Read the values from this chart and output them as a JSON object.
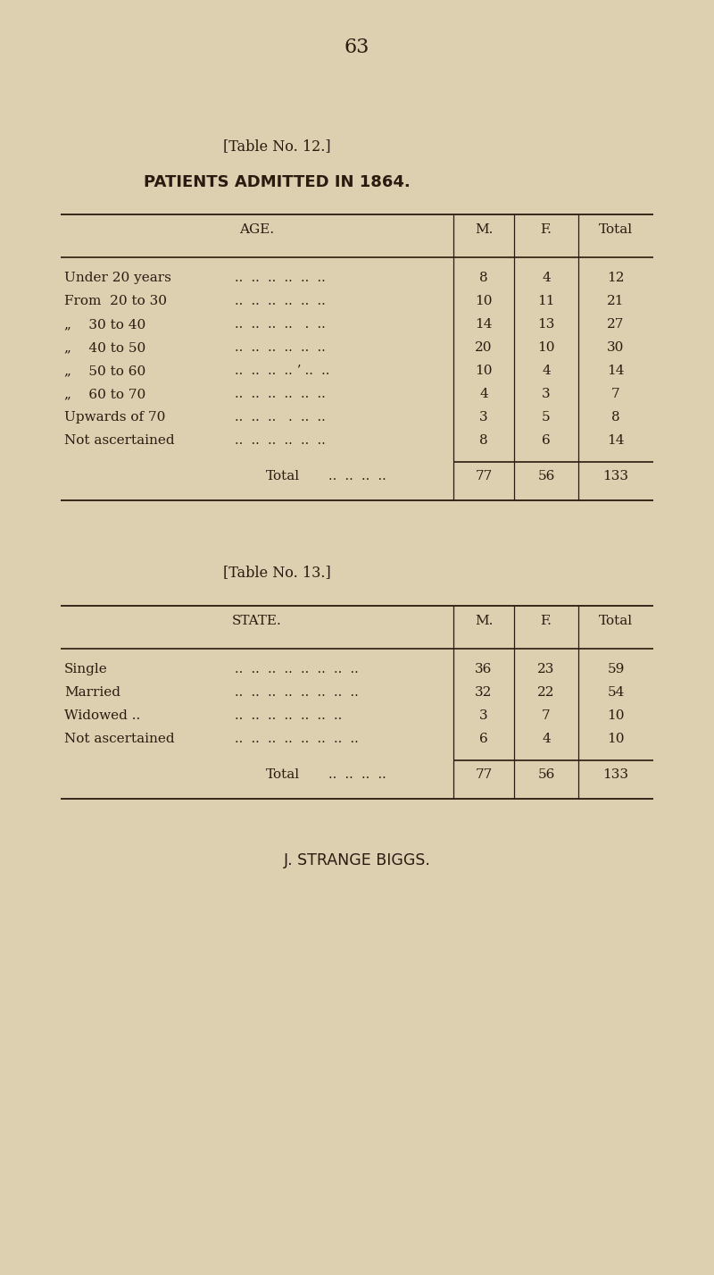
{
  "bg_color": "#ddd0b0",
  "text_color": "#2a1a10",
  "page_number": "63",
  "table1_label": "[Table No. 12.]",
  "table1_title": "PATIENTS ADMITTED IN 1864.",
  "table2_label": "[Table No. 13.]",
  "footer": "J. STRANGE BIGGS.",
  "t1_rows": [
    [
      "Under 20 years",
      "8",
      "4",
      "12"
    ],
    [
      "From  20 to 30",
      "10",
      "11",
      "21"
    ],
    [
      "„    30 to 40",
      "14",
      "13",
      "27"
    ],
    [
      "„    40 to 50",
      "20",
      "10",
      "30"
    ],
    [
      "„    50 to 60",
      "10",
      "4",
      "14"
    ],
    [
      "„    60 to 70",
      "4",
      "3",
      "7"
    ],
    [
      "Upwards of 70",
      "3",
      "5",
      "8"
    ],
    [
      "Not ascertained",
      "8",
      "6",
      "14"
    ]
  ],
  "t1_total": [
    "77",
    "56",
    "133"
  ],
  "t2_rows": [
    [
      "Single",
      "36",
      "23",
      "59"
    ],
    [
      "Married",
      "32",
      "22",
      "54"
    ],
    [
      "Widowed ..",
      "3",
      "7",
      "10"
    ],
    [
      "Not ascertained",
      "6",
      "4",
      "10"
    ]
  ],
  "t2_total": [
    "77",
    "56",
    "133"
  ],
  "col_header": [
    "M.",
    "F.",
    "Total"
  ],
  "dots6": "..  ..  ..  ..  ..  ..",
  "dots8": "..  ..  ..  ..  ..  ..  ..  ..",
  "dots_total": "..  ..  ..  .."
}
